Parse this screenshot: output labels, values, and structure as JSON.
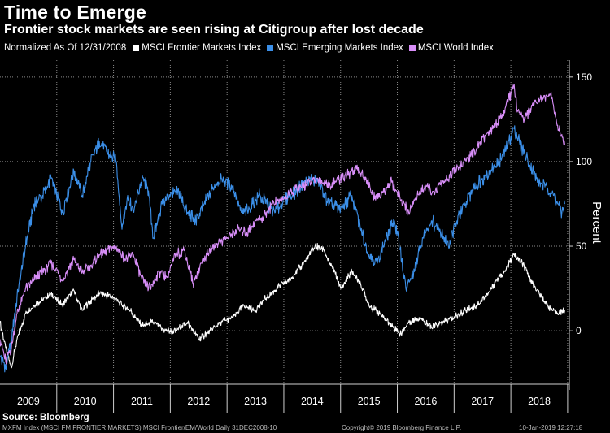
{
  "title": "Time to Emerge",
  "subtitle": "Frontier stock markets are seen rising at Citigroup after lost decade",
  "legend_note": "Normalized As Of 12/31/2008",
  "source": "Source: Bloomberg",
  "footer": {
    "left": "MXFM Index (MSCI FM FRONTIER MARKETS) MSCI Frontier/EM/World  Daily 31DEC2008-10",
    "mid": "Copyright© 2019 Bloomberg Finance L.P.",
    "right": "10-Jan-2019 12:27:18"
  },
  "chart_data": {
    "type": "line",
    "title": "Time to Emerge",
    "subtitle": "Frontier stock markets are seen rising at Citigroup after lost decade",
    "xlabel": "",
    "ylabel": "Percent",
    "xlim": [
      2009.0,
      2019.03
    ],
    "ylim": [
      -35,
      160
    ],
    "yticks": [
      0,
      50,
      100,
      150
    ],
    "x_tick_labels": [
      "2009",
      "2010",
      "2011",
      "2012",
      "2013",
      "2014",
      "2015",
      "2016",
      "2017",
      "2018"
    ],
    "grid": true,
    "legend_position": "top-left",
    "series": [
      {
        "name": "MSCI Frontier Markets Index",
        "color": "#ffffff",
        "x": [
          2009.0,
          2009.1,
          2009.2,
          2009.3,
          2009.45,
          2009.6,
          2009.75,
          2009.9,
          2010.1,
          2010.3,
          2010.45,
          2010.6,
          2010.75,
          2011.0,
          2011.15,
          2011.3,
          2011.5,
          2011.7,
          2011.9,
          2012.1,
          2012.3,
          2012.5,
          2012.7,
          2012.9,
          2013.1,
          2013.3,
          2013.5,
          2013.7,
          2013.9,
          2014.1,
          2014.3,
          2014.45,
          2014.55,
          2014.7,
          2014.8,
          2014.9,
          2015.0,
          2015.2,
          2015.35,
          2015.5,
          2015.7,
          2015.85,
          2016.05,
          2016.2,
          2016.4,
          2016.6,
          2016.8,
          2017.0,
          2017.2,
          2017.4,
          2017.6,
          2017.75,
          2017.9,
          2018.05,
          2018.2,
          2018.35,
          2018.5,
          2018.65,
          2018.8,
          2018.95
        ],
        "values": [
          5,
          -10,
          -22,
          -5,
          10,
          15,
          18,
          22,
          15,
          24,
          12,
          18,
          22,
          20,
          15,
          12,
          3,
          5,
          0,
          0,
          5,
          -5,
          0,
          5,
          8,
          15,
          12,
          20,
          26,
          30,
          38,
          45,
          50,
          48,
          40,
          35,
          25,
          35,
          28,
          15,
          10,
          5,
          -2,
          5,
          8,
          2,
          5,
          8,
          12,
          15,
          22,
          30,
          35,
          45,
          40,
          30,
          22,
          15,
          10,
          12
        ]
      },
      {
        "name": "MSCI Emerging Markets Index",
        "color": "#3b8fe8",
        "x": [
          2009.0,
          2009.1,
          2009.2,
          2009.3,
          2009.45,
          2009.6,
          2009.75,
          2009.9,
          2010.1,
          2010.3,
          2010.45,
          2010.6,
          2010.75,
          2010.9,
          2011.05,
          2011.15,
          2011.25,
          2011.35,
          2011.5,
          2011.6,
          2011.7,
          2011.85,
          2012.0,
          2012.15,
          2012.3,
          2012.45,
          2012.6,
          2012.75,
          2012.9,
          2013.1,
          2013.25,
          2013.4,
          2013.55,
          2013.7,
          2013.85,
          2014.0,
          2014.15,
          2014.3,
          2014.45,
          2014.6,
          2014.8,
          2015.0,
          2015.2,
          2015.35,
          2015.5,
          2015.65,
          2015.8,
          2015.95,
          2016.05,
          2016.15,
          2016.3,
          2016.45,
          2016.6,
          2016.75,
          2016.9,
          2017.05,
          2017.2,
          2017.35,
          2017.5,
          2017.65,
          2017.8,
          2017.95,
          2018.05,
          2018.15,
          2018.3,
          2018.45,
          2018.6,
          2018.75,
          2018.9,
          2018.95
        ],
        "values": [
          -15,
          -22,
          -5,
          20,
          50,
          75,
          80,
          90,
          70,
          95,
          80,
          100,
          112,
          105,
          100,
          60,
          80,
          70,
          90,
          85,
          55,
          75,
          80,
          82,
          70,
          65,
          75,
          85,
          90,
          85,
          70,
          72,
          80,
          75,
          70,
          78,
          80,
          85,
          90,
          88,
          75,
          72,
          80,
          60,
          45,
          40,
          55,
          65,
          48,
          25,
          35,
          55,
          65,
          60,
          50,
          65,
          75,
          85,
          90,
          95,
          100,
          110,
          120,
          112,
          100,
          90,
          85,
          80,
          70,
          75
        ]
      },
      {
        "name": "MSCI World Index",
        "color": "#d88ef8",
        "x": [
          2009.0,
          2009.1,
          2009.2,
          2009.3,
          2009.45,
          2009.6,
          2009.75,
          2009.9,
          2010.1,
          2010.3,
          2010.45,
          2010.6,
          2010.75,
          2010.9,
          2011.05,
          2011.2,
          2011.35,
          2011.5,
          2011.65,
          2011.8,
          2011.95,
          2012.1,
          2012.25,
          2012.4,
          2012.55,
          2012.7,
          2012.85,
          2013.0,
          2013.2,
          2013.35,
          2013.5,
          2013.65,
          2013.8,
          2014.0,
          2014.15,
          2014.3,
          2014.45,
          2014.6,
          2014.8,
          2015.0,
          2015.15,
          2015.3,
          2015.45,
          2015.6,
          2015.75,
          2015.9,
          2016.05,
          2016.2,
          2016.35,
          2016.5,
          2016.65,
          2016.8,
          2016.95,
          2017.1,
          2017.25,
          2017.4,
          2017.55,
          2017.7,
          2017.85,
          2018.0,
          2018.05,
          2018.12,
          2018.25,
          2018.4,
          2018.55,
          2018.7,
          2018.8,
          2018.88,
          2018.95
        ],
        "values": [
          -5,
          -18,
          -10,
          10,
          25,
          30,
          35,
          40,
          30,
          42,
          35,
          38,
          45,
          48,
          50,
          42,
          45,
          30,
          25,
          35,
          32,
          45,
          48,
          28,
          40,
          48,
          52,
          55,
          60,
          58,
          65,
          68,
          75,
          78,
          82,
          85,
          88,
          90,
          86,
          90,
          93,
          95,
          90,
          78,
          82,
          88,
          78,
          70,
          80,
          85,
          82,
          88,
          92,
          98,
          102,
          108,
          115,
          120,
          128,
          140,
          145,
          130,
          125,
          135,
          138,
          140,
          125,
          115,
          110
        ]
      }
    ]
  }
}
